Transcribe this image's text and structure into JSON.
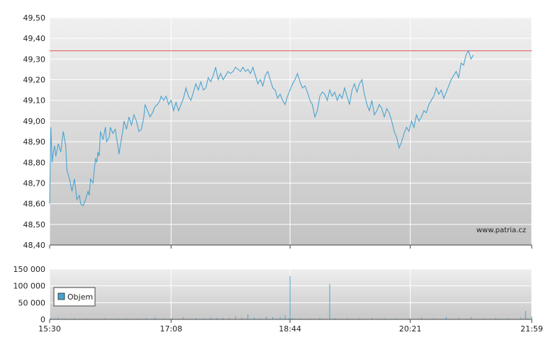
{
  "chart_data": [
    {
      "type": "line",
      "name_label": "price",
      "y_tick_labels": [
        "48,40",
        "48,50",
        "48,60",
        "48,70",
        "48,80",
        "48,90",
        "49,00",
        "49,10",
        "49,20",
        "49,30",
        "49,40",
        "49,50"
      ],
      "y_ticks": [
        48.4,
        48.5,
        48.6,
        48.7,
        48.8,
        48.9,
        49.0,
        49.1,
        49.2,
        49.3,
        49.4,
        49.5
      ],
      "ylim": [
        48.4,
        49.5
      ],
      "xlim": [
        0,
        389
      ],
      "x_tick_labels": [
        "15:30",
        "17:08",
        "18:44",
        "20:21",
        "21:59"
      ],
      "x_tick_minutes": [
        0,
        98,
        194,
        291,
        389
      ],
      "reference_value": 49.34,
      "watermark": "www.patria.cz",
      "grid": true,
      "points": [
        [
          0,
          48.6
        ],
        [
          1,
          48.97
        ],
        [
          2,
          48.8
        ],
        [
          3,
          48.85
        ],
        [
          4,
          48.88
        ],
        [
          5,
          48.83
        ],
        [
          7,
          48.89
        ],
        [
          9,
          48.85
        ],
        [
          11,
          48.95
        ],
        [
          13,
          48.88
        ],
        [
          14,
          48.76
        ],
        [
          16,
          48.72
        ],
        [
          18,
          48.66
        ],
        [
          20,
          48.72
        ],
        [
          22,
          48.62
        ],
        [
          24,
          48.64
        ],
        [
          25,
          48.6
        ],
        [
          27,
          48.59
        ],
        [
          29,
          48.62
        ],
        [
          31,
          48.66
        ],
        [
          32,
          48.64
        ],
        [
          33,
          48.72
        ],
        [
          35,
          48.7
        ],
        [
          37,
          48.82
        ],
        [
          38,
          48.8
        ],
        [
          39,
          48.85
        ],
        [
          40,
          48.83
        ],
        [
          41,
          48.95
        ],
        [
          43,
          48.91
        ],
        [
          45,
          48.97
        ],
        [
          46,
          48.9
        ],
        [
          48,
          48.92
        ],
        [
          49,
          48.97
        ],
        [
          51,
          48.94
        ],
        [
          53,
          48.96
        ],
        [
          56,
          48.84
        ],
        [
          57,
          48.88
        ],
        [
          59,
          48.95
        ],
        [
          60,
          49.0
        ],
        [
          62,
          48.96
        ],
        [
          64,
          49.02
        ],
        [
          66,
          48.98
        ],
        [
          68,
          49.03
        ],
        [
          70,
          49.0
        ],
        [
          72,
          48.95
        ],
        [
          74,
          48.96
        ],
        [
          76,
          49.02
        ],
        [
          77,
          49.08
        ],
        [
          79,
          49.05
        ],
        [
          81,
          49.02
        ],
        [
          83,
          49.04
        ],
        [
          85,
          49.07
        ],
        [
          87,
          49.08
        ],
        [
          89,
          49.1
        ],
        [
          90,
          49.12
        ],
        [
          92,
          49.1
        ],
        [
          94,
          49.12
        ],
        [
          96,
          49.08
        ],
        [
          98,
          49.1
        ],
        [
          100,
          49.05
        ],
        [
          102,
          49.09
        ],
        [
          104,
          49.05
        ],
        [
          106,
          49.08
        ],
        [
          108,
          49.11
        ],
        [
          110,
          49.16
        ],
        [
          112,
          49.12
        ],
        [
          114,
          49.1
        ],
        [
          116,
          49.14
        ],
        [
          118,
          49.18
        ],
        [
          120,
          49.15
        ],
        [
          122,
          49.19
        ],
        [
          124,
          49.15
        ],
        [
          126,
          49.16
        ],
        [
          128,
          49.21
        ],
        [
          130,
          49.19
        ],
        [
          132,
          49.22
        ],
        [
          134,
          49.26
        ],
        [
          136,
          49.2
        ],
        [
          138,
          49.23
        ],
        [
          140,
          49.2
        ],
        [
          142,
          49.22
        ],
        [
          144,
          49.24
        ],
        [
          146,
          49.23
        ],
        [
          148,
          49.24
        ],
        [
          150,
          49.26
        ],
        [
          152,
          49.25
        ],
        [
          154,
          49.24
        ],
        [
          156,
          49.26
        ],
        [
          158,
          49.24
        ],
        [
          160,
          49.25
        ],
        [
          162,
          49.23
        ],
        [
          164,
          49.26
        ],
        [
          166,
          49.22
        ],
        [
          168,
          49.18
        ],
        [
          170,
          49.2
        ],
        [
          172,
          49.17
        ],
        [
          174,
          49.22
        ],
        [
          176,
          49.24
        ],
        [
          178,
          49.2
        ],
        [
          180,
          49.16
        ],
        [
          182,
          49.15
        ],
        [
          184,
          49.11
        ],
        [
          186,
          49.13
        ],
        [
          188,
          49.1
        ],
        [
          190,
          49.08
        ],
        [
          192,
          49.12
        ],
        [
          194,
          49.15
        ],
        [
          196,
          49.18
        ],
        [
          198,
          49.2
        ],
        [
          200,
          49.23
        ],
        [
          202,
          49.19
        ],
        [
          204,
          49.16
        ],
        [
          206,
          49.17
        ],
        [
          208,
          49.14
        ],
        [
          210,
          49.1
        ],
        [
          212,
          49.08
        ],
        [
          214,
          49.02
        ],
        [
          216,
          49.05
        ],
        [
          218,
          49.12
        ],
        [
          220,
          49.14
        ],
        [
          222,
          49.13
        ],
        [
          224,
          49.1
        ],
        [
          226,
          49.15
        ],
        [
          228,
          49.12
        ],
        [
          230,
          49.14
        ],
        [
          232,
          49.1
        ],
        [
          234,
          49.13
        ],
        [
          236,
          49.11
        ],
        [
          238,
          49.16
        ],
        [
          240,
          49.12
        ],
        [
          242,
          49.08
        ],
        [
          244,
          49.15
        ],
        [
          246,
          49.18
        ],
        [
          248,
          49.14
        ],
        [
          250,
          49.18
        ],
        [
          252,
          49.2
        ],
        [
          254,
          49.13
        ],
        [
          256,
          49.08
        ],
        [
          258,
          49.05
        ],
        [
          260,
          49.1
        ],
        [
          262,
          49.03
        ],
        [
          264,
          49.05
        ],
        [
          266,
          49.08
        ],
        [
          268,
          49.06
        ],
        [
          270,
          49.02
        ],
        [
          272,
          49.06
        ],
        [
          274,
          49.04
        ],
        [
          276,
          49.0
        ],
        [
          278,
          48.95
        ],
        [
          280,
          48.92
        ],
        [
          282,
          48.87
        ],
        [
          284,
          48.9
        ],
        [
          286,
          48.94
        ],
        [
          288,
          48.97
        ],
        [
          290,
          48.95
        ],
        [
          292,
          49.0
        ],
        [
          294,
          48.97
        ],
        [
          296,
          49.03
        ],
        [
          298,
          49.0
        ],
        [
          300,
          49.02
        ],
        [
          302,
          49.05
        ],
        [
          304,
          49.04
        ],
        [
          306,
          49.08
        ],
        [
          308,
          49.1
        ],
        [
          310,
          49.12
        ],
        [
          312,
          49.16
        ],
        [
          314,
          49.13
        ],
        [
          316,
          49.15
        ],
        [
          318,
          49.11
        ],
        [
          320,
          49.14
        ],
        [
          322,
          49.17
        ],
        [
          324,
          49.2
        ],
        [
          326,
          49.22
        ],
        [
          328,
          49.24
        ],
        [
          330,
          49.21
        ],
        [
          332,
          49.28
        ],
        [
          334,
          49.27
        ],
        [
          336,
          49.32
        ],
        [
          338,
          49.34
        ],
        [
          340,
          49.3
        ],
        [
          342,
          49.32
        ]
      ]
    },
    {
      "type": "bar",
      "name_label": "volume",
      "legend": [
        "Objem"
      ],
      "y_tick_labels": [
        "0",
        "50 000",
        "100 000",
        "150 000"
      ],
      "y_ticks": [
        0,
        50000,
        100000,
        150000
      ],
      "ylim": [
        0,
        150000
      ],
      "xlim": [
        0,
        389
      ],
      "x_tick_labels": [
        "15:30",
        "17:08",
        "18:44",
        "20:21",
        "21:59"
      ],
      "x_tick_minutes": [
        0,
        98,
        194,
        291,
        389
      ],
      "grid": true,
      "spikes": [
        [
          1,
          4000
        ],
        [
          4,
          3000
        ],
        [
          7,
          5000
        ],
        [
          12,
          2500
        ],
        [
          20,
          3000
        ],
        [
          30,
          2000
        ],
        [
          45,
          3500
        ],
        [
          55,
          2500
        ],
        [
          62,
          3000
        ],
        [
          70,
          2000
        ],
        [
          78,
          4000
        ],
        [
          85,
          6000
        ],
        [
          92,
          3000
        ],
        [
          99,
          4500
        ],
        [
          108,
          6000
        ],
        [
          112,
          2500
        ],
        [
          118,
          4000
        ],
        [
          125,
          3000
        ],
        [
          130,
          5000
        ],
        [
          135,
          4000
        ],
        [
          140,
          4500
        ],
        [
          145,
          3500
        ],
        [
          150,
          9000
        ],
        [
          155,
          5000
        ],
        [
          160,
          15000
        ],
        [
          165,
          6000
        ],
        [
          170,
          3000
        ],
        [
          175,
          8000
        ],
        [
          180,
          6500
        ],
        [
          186,
          7000
        ],
        [
          190,
          12000
        ],
        [
          193,
          2500
        ],
        [
          194,
          130000
        ],
        [
          196,
          4000
        ],
        [
          202,
          3000
        ],
        [
          210,
          2500
        ],
        [
          218,
          4000
        ],
        [
          226,
          105000
        ],
        [
          230,
          3500
        ],
        [
          240,
          3000
        ],
        [
          250,
          2500
        ],
        [
          260,
          4000
        ],
        [
          270,
          3000
        ],
        [
          280,
          2500
        ],
        [
          290,
          3000
        ],
        [
          300,
          5000
        ],
        [
          310,
          3500
        ],
        [
          320,
          7000
        ],
        [
          330,
          4000
        ],
        [
          340,
          6000
        ],
        [
          350,
          3000
        ],
        [
          360,
          4000
        ],
        [
          370,
          3500
        ],
        [
          380,
          5000
        ],
        [
          384,
          25000
        ],
        [
          386,
          3000
        ],
        [
          389,
          8000
        ]
      ]
    }
  ],
  "colors": {
    "line": "#4aa3cf",
    "reference": "#e06464",
    "bar": "#4aa3cf",
    "grid": "#ffffff",
    "bg_top": "#eeeeee",
    "bg_bottom": "#c2c2c2",
    "axis": "#444444"
  }
}
